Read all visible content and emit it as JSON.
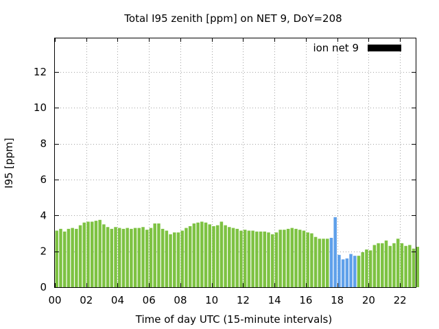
{
  "chart_data": {
    "type": "bar",
    "title": "Total I95 zenith [ppm] on NET 9, DoY=208",
    "xlabel": "Time of day UTC (15-minute intervals)",
    "ylabel": "I95 [ppm]",
    "xlim": [
      0,
      23
    ],
    "ylim": [
      0,
      13.9
    ],
    "xticks": [
      "00",
      "02",
      "04",
      "06",
      "08",
      "10",
      "12",
      "14",
      "16",
      "18",
      "20",
      "22"
    ],
    "xtick_values": [
      0,
      2,
      4,
      6,
      8,
      10,
      12,
      14,
      16,
      18,
      20,
      22
    ],
    "yticks": [
      "0",
      "2",
      "4",
      "6",
      "8",
      "10",
      "12"
    ],
    "ytick_values": [
      0,
      2,
      4,
      6,
      8,
      10,
      12
    ],
    "grid": true,
    "legend": {
      "label": "ion net 9",
      "position": "top-right",
      "color": "#000000"
    },
    "interval_hours": 0.25,
    "colors": {
      "normal": "#7dc242",
      "highlight": "#5fa0ea"
    },
    "highlight_range": [
      17.5,
      19.25
    ],
    "values": [
      3.15,
      3.25,
      3.1,
      3.25,
      3.3,
      3.25,
      3.45,
      3.6,
      3.65,
      3.65,
      3.7,
      3.75,
      3.5,
      3.35,
      3.25,
      3.35,
      3.3,
      3.25,
      3.3,
      3.25,
      3.3,
      3.3,
      3.35,
      3.2,
      3.3,
      3.55,
      3.55,
      3.25,
      3.15,
      2.95,
      3.05,
      3.05,
      3.15,
      3.3,
      3.4,
      3.55,
      3.6,
      3.65,
      3.6,
      3.5,
      3.4,
      3.45,
      3.65,
      3.45,
      3.35,
      3.3,
      3.25,
      3.15,
      3.2,
      3.15,
      3.15,
      3.1,
      3.1,
      3.1,
      3.05,
      2.95,
      3.05,
      3.2,
      3.2,
      3.25,
      3.3,
      3.25,
      3.2,
      3.15,
      3.05,
      3.0,
      2.8,
      2.7,
      2.7,
      2.7,
      2.75,
      3.9,
      1.8,
      1.55,
      1.6,
      1.85,
      1.75,
      1.75,
      1.95,
      2.1,
      2.05,
      2.35,
      2.45,
      2.45,
      2.6,
      2.3,
      2.45,
      2.7,
      2.45,
      2.3,
      2.35,
      2.15,
      2.25
    ]
  }
}
